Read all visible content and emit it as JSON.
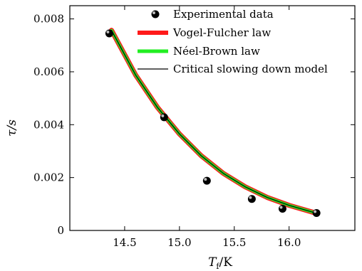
{
  "chart_data": {
    "type": "scatter",
    "x": [
      14.36,
      14.86,
      15.25,
      15.66,
      15.94,
      16.25
    ],
    "xlabel_main": "T",
    "xlabel_sub": "f",
    "xlabel_unit": "/K",
    "ylabel": "τ/s",
    "xlim": [
      14.0,
      16.6
    ],
    "ylim": [
      0,
      0.0085
    ],
    "xticks": [
      14.5,
      15.0,
      15.5,
      16.0
    ],
    "xtick_labels": [
      "14.5",
      "15.0",
      "15.5",
      "16.0"
    ],
    "yticks": [
      0,
      0.002,
      0.004,
      0.006,
      0.008
    ],
    "ytick_labels": [
      "0",
      "0.002",
      "0.004",
      "0.006",
      "0.008"
    ],
    "grid": false,
    "legend_position": "top-right",
    "series": [
      {
        "name": "Experimental data",
        "kind": "points",
        "color": "#000000",
        "x": [
          14.36,
          14.86,
          15.25,
          15.66,
          15.94,
          16.25
        ],
        "y": [
          0.00745,
          0.00428,
          0.00188,
          0.00119,
          0.00082,
          0.00066
        ]
      },
      {
        "name": "Vogel-Fulcher law",
        "kind": "curve",
        "color": "#ff1a1a",
        "x": [
          14.38,
          14.6,
          14.8,
          15.0,
          15.2,
          15.4,
          15.6,
          15.8,
          16.0,
          16.25
        ],
        "y": [
          0.00757,
          0.00588,
          0.00465,
          0.00365,
          0.00282,
          0.00216,
          0.00165,
          0.00125,
          0.00095,
          0.00065
        ]
      },
      {
        "name": "Néel-Brown law",
        "kind": "curve",
        "color": "#22ee22",
        "x": [
          14.38,
          14.6,
          14.8,
          15.0,
          15.2,
          15.4,
          15.6,
          15.8,
          16.0,
          16.25
        ],
        "y": [
          0.00757,
          0.00588,
          0.00465,
          0.00365,
          0.00282,
          0.00216,
          0.00165,
          0.00125,
          0.00095,
          0.00065
        ]
      },
      {
        "name": "Critical slowing down model",
        "kind": "curve",
        "color": "#000000",
        "x": [
          14.38,
          14.6,
          14.8,
          15.0,
          15.2,
          15.4,
          15.6,
          15.8,
          16.0,
          16.25
        ],
        "y": [
          0.00757,
          0.00588,
          0.00465,
          0.00365,
          0.00282,
          0.00216,
          0.00165,
          0.00125,
          0.00095,
          0.00065
        ]
      }
    ]
  }
}
